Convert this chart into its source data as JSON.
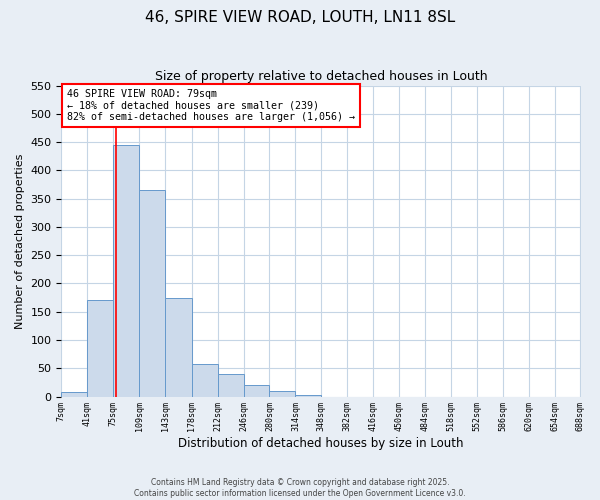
{
  "title": "46, SPIRE VIEW ROAD, LOUTH, LN11 8SL",
  "subtitle": "Size of property relative to detached houses in Louth",
  "xlabel": "Distribution of detached houses by size in Louth",
  "ylabel": "Number of detached properties",
  "bar_values": [
    8,
    170,
    445,
    365,
    175,
    57,
    40,
    20,
    10,
    2,
    0,
    0,
    0,
    0,
    0,
    0,
    0,
    0,
    0,
    0
  ],
  "bin_edges": [
    7,
    41,
    75,
    109,
    143,
    178,
    212,
    246,
    280,
    314,
    348,
    382,
    416,
    450,
    484,
    518,
    552,
    586,
    620,
    654,
    688
  ],
  "tick_labels": [
    "7sqm",
    "41sqm",
    "75sqm",
    "109sqm",
    "143sqm",
    "178sqm",
    "212sqm",
    "246sqm",
    "280sqm",
    "314sqm",
    "348sqm",
    "382sqm",
    "416sqm",
    "450sqm",
    "484sqm",
    "518sqm",
    "552sqm",
    "586sqm",
    "620sqm",
    "654sqm",
    "688sqm"
  ],
  "bar_color": "#ccdaeb",
  "bar_edge_color": "#6699cc",
  "vline_x": 79,
  "vline_color": "red",
  "ylim": [
    0,
    550
  ],
  "yticks": [
    0,
    50,
    100,
    150,
    200,
    250,
    300,
    350,
    400,
    450,
    500,
    550
  ],
  "annotation_title": "46 SPIRE VIEW ROAD: 79sqm",
  "annotation_line1": "← 18% of detached houses are smaller (239)",
  "annotation_line2": "82% of semi-detached houses are larger (1,056) →",
  "annotation_box_color": "white",
  "annotation_box_edge_color": "red",
  "footer1": "Contains HM Land Registry data © Crown copyright and database right 2025.",
  "footer2": "Contains public sector information licensed under the Open Government Licence v3.0.",
  "bg_color": "#e8eef5",
  "plot_bg_color": "white",
  "grid_color": "#c5d5e5"
}
